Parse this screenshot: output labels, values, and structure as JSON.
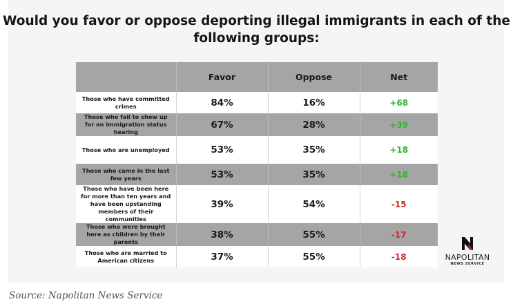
{
  "chart_data": {
    "type": "table",
    "title": "Would you favor or oppose deporting illegal immigrants in each of the following groups:",
    "columns": [
      "",
      "Favor",
      "Oppose",
      "Net"
    ],
    "rows": [
      {
        "group": "Those who have committed crimes",
        "favor": "84%",
        "oppose": "16%",
        "net": "+68",
        "favor_value": 84,
        "oppose_value": 16,
        "net_value": 68
      },
      {
        "group": "Those who fail to show up for an immigration status hearing",
        "favor": "67%",
        "oppose": "28%",
        "net": "+39",
        "favor_value": 67,
        "oppose_value": 28,
        "net_value": 39
      },
      {
        "group": "Those who are unemployed",
        "favor": "53%",
        "oppose": "35%",
        "net": "+18",
        "favor_value": 53,
        "oppose_value": 35,
        "net_value": 18
      },
      {
        "group": "Those who came in the last few years",
        "favor": "53%",
        "oppose": "35%",
        "net": "+18",
        "favor_value": 53,
        "oppose_value": 35,
        "net_value": 18
      },
      {
        "group": "Those who have been here for more than ten years and have been upstanding members of their communities",
        "favor": "39%",
        "oppose": "54%",
        "net": "-15",
        "favor_value": 39,
        "oppose_value": 54,
        "net_value": -15
      },
      {
        "group": "Those who were brought here as children by their parents",
        "favor": "38%",
        "oppose": "55%",
        "net": "-17",
        "favor_value": 38,
        "oppose_value": 55,
        "net_value": -17
      },
      {
        "group": "Those who are married to American citizens",
        "favor": "37%",
        "oppose": "55%",
        "net": "-18",
        "favor_value": 37,
        "oppose_value": 55,
        "net_value": -18
      }
    ]
  },
  "colors": {
    "header_bg": "#a5a5a5",
    "positive": "#2fb62b",
    "negative": "#d3262b",
    "logo_red": "#d3262b"
  },
  "logo": {
    "name": "NAPOLITAN",
    "subtitle": "NEWS SERVICE",
    "mark": "N"
  },
  "source": "Source: Napolitan News Service"
}
